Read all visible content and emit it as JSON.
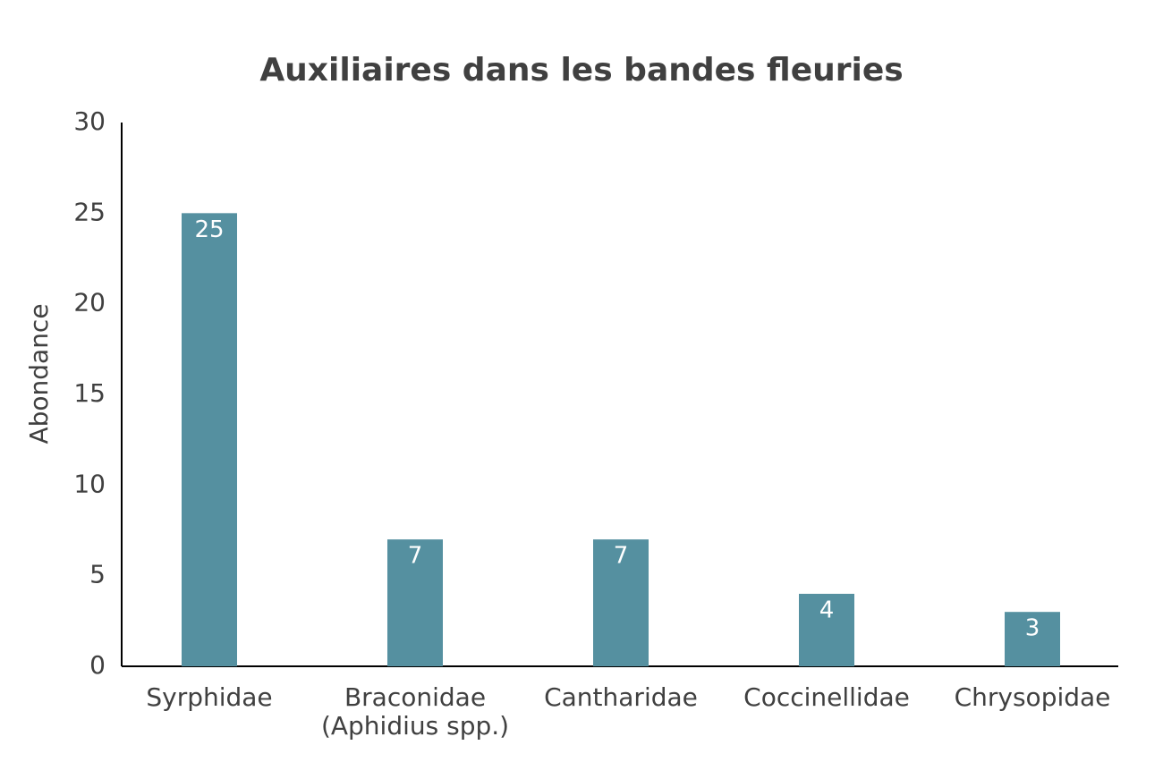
{
  "chart_data": {
    "type": "bar",
    "title": "Auxiliaires dans les bandes fleuries",
    "y_label": "Abondance",
    "categories": [
      "Syrphidae",
      "Braconidae\n(Aphidius spp.)",
      "Cantharidae",
      "Coccinellidae",
      "Chrysopidae"
    ],
    "values": [
      25,
      7,
      7,
      4,
      3
    ],
    "color": "#5590a0",
    "ylim": [
      0,
      30
    ],
    "yticks": [
      0,
      5,
      10,
      15,
      20,
      25,
      30
    ],
    "grid": false,
    "data_labels": true
  }
}
